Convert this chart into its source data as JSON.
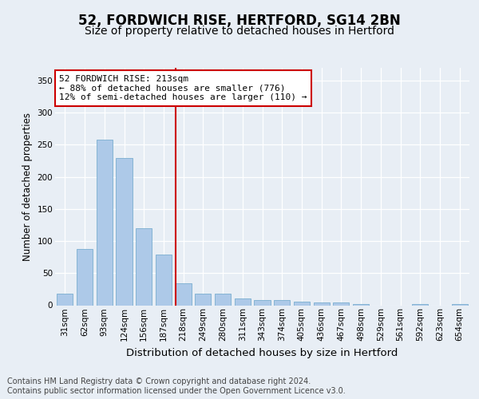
{
  "title1": "52, FORDWICH RISE, HERTFORD, SG14 2BN",
  "title2": "Size of property relative to detached houses in Hertford",
  "xlabel": "Distribution of detached houses by size in Hertford",
  "ylabel": "Number of detached properties",
  "categories": [
    "31sqm",
    "62sqm",
    "93sqm",
    "124sqm",
    "156sqm",
    "187sqm",
    "218sqm",
    "249sqm",
    "280sqm",
    "311sqm",
    "343sqm",
    "374sqm",
    "405sqm",
    "436sqm",
    "467sqm",
    "498sqm",
    "529sqm",
    "561sqm",
    "592sqm",
    "623sqm",
    "654sqm"
  ],
  "values": [
    18,
    88,
    258,
    230,
    120,
    79,
    34,
    18,
    18,
    10,
    8,
    8,
    6,
    4,
    4,
    2,
    0,
    0,
    2,
    0,
    2
  ],
  "bar_color": "#adc9e8",
  "bar_edgecolor": "#7aaed0",
  "vline_color": "#cc0000",
  "annotation_text": "52 FORDWICH RISE: 213sqm\n← 88% of detached houses are smaller (776)\n12% of semi-detached houses are larger (110) →",
  "annotation_box_color": "#ffffff",
  "annotation_box_edgecolor": "#cc0000",
  "ylim": [
    0,
    370
  ],
  "yticks": [
    0,
    50,
    100,
    150,
    200,
    250,
    300,
    350
  ],
  "footer_text": "Contains HM Land Registry data © Crown copyright and database right 2024.\nContains public sector information licensed under the Open Government Licence v3.0.",
  "background_color": "#e8eef5",
  "plot_background_color": "#e8eef5",
  "grid_color": "#ffffff",
  "title1_fontsize": 12,
  "title2_fontsize": 10,
  "xlabel_fontsize": 9.5,
  "ylabel_fontsize": 8.5,
  "tick_fontsize": 7.5,
  "footer_fontsize": 7.0,
  "vline_x": 6.0
}
